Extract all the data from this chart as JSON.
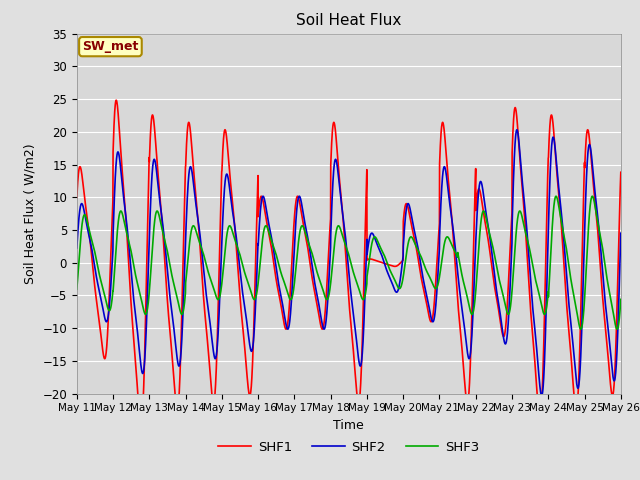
{
  "title": "Soil Heat Flux",
  "xlabel": "Time",
  "ylabel": "Soil Heat Flux ( W/m2)",
  "ylim": [
    -20,
    35
  ],
  "yticks": [
    -20,
    -15,
    -10,
    -5,
    0,
    5,
    10,
    15,
    20,
    25,
    30,
    35
  ],
  "colors": {
    "SHF1": "#FF0000",
    "SHF2": "#0000CC",
    "SHF3": "#00AA00"
  },
  "legend_label": "SW_met",
  "legend_box_facecolor": "#FFFFC0",
  "legend_box_edgecolor": "#AA8800",
  "legend_text_color": "#880000",
  "fig_facecolor": "#E0E0E0",
  "plot_facecolor": "#D8D8D8",
  "grid_color": "#FFFFFF",
  "x_start": 11,
  "x_end": 26,
  "n_points": 3000,
  "xtick_days": [
    11,
    12,
    13,
    14,
    15,
    16,
    17,
    18,
    19,
    20,
    21,
    22,
    23,
    24,
    25,
    26
  ]
}
